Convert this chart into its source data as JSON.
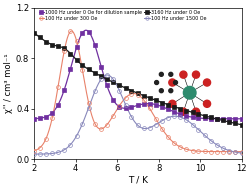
{
  "xlabel": "T / K",
  "ylabel": "χ'' / cm³ mol⁻¹",
  "xlim": [
    2,
    12
  ],
  "ylim": [
    0,
    1.2
  ],
  "yticks": [
    0.0,
    0.4,
    0.8,
    1.2
  ],
  "xticks": [
    2,
    4,
    6,
    8,
    10,
    12
  ],
  "background_color": "#ffffff",
  "legend_labels": [
    "1000 Hz under 0 Oe for dilution sample",
    "3160 Hz under 0 Oe",
    "100 Hz under 300 Oe",
    "100 Hz under 1500 Oe"
  ],
  "series": [
    {
      "label": "1000 Hz under 0 Oe for dilution sample",
      "color": "#7030a0",
      "marker": "s",
      "markersize": 2.8,
      "linewidth": 0.9,
      "filled": true
    },
    {
      "label": "3160 Hz under 0 Oe",
      "color": "#1a1a1a",
      "marker": "s",
      "markersize": 2.8,
      "linewidth": 0.9,
      "filled": true
    },
    {
      "label": "100 Hz under 300 Oe",
      "color": "#e8826a",
      "marker": "o",
      "markersize": 2.8,
      "linewidth": 0.8,
      "filled": false
    },
    {
      "label": "100 Hz under 1500 Oe",
      "color": "#8888bb",
      "marker": "o",
      "markersize": 2.8,
      "linewidth": 0.8,
      "filled": false
    }
  ]
}
